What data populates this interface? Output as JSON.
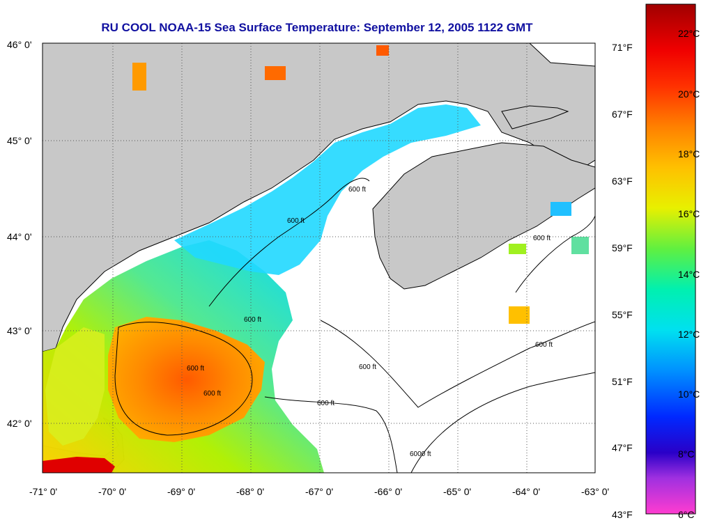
{
  "title": "RU COOL  NOAA-15  Sea Surface Temperature:  September 12, 2005 1122 GMT",
  "lat_labels": [
    "46° 0'",
    "45° 0'",
    "44° 0'",
    "43° 0'",
    "42° 0'"
  ],
  "lon_labels": [
    "-71° 0'",
    "-70° 0'",
    "-69° 0'",
    "-68° 0'",
    "-67° 0'",
    "-66° 0'",
    "-65° 0'",
    "-64° 0'",
    "-63° 0'"
  ],
  "contour_label": "600 ft",
  "contour_label_deep": "6000 ft",
  "colorbar": {
    "celsius_labels": [
      "22°C",
      "20°C",
      "18°C",
      "16°C",
      "14°C",
      "12°C",
      "10°C",
      "8°C",
      "6°C"
    ],
    "fahrenheit_labels": [
      "71°F",
      "67°F",
      "63°F",
      "59°F",
      "55°F",
      "51°F",
      "47°F",
      "43°F"
    ]
  },
  "colors": {
    "land": "#c8c8c8",
    "cloud": "#ffffff",
    "title": "#1010a0"
  }
}
